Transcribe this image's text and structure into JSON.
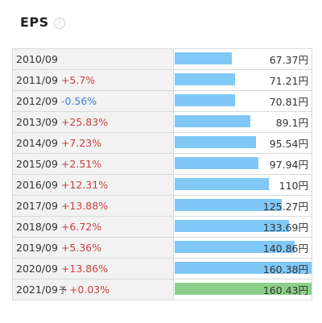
{
  "header": {
    "title": "EPS",
    "help_icon_glyph": "?"
  },
  "colors": {
    "bar_actual": "#80c8f8",
    "bar_forecast": "#8bd08a",
    "change_up": "#c94040",
    "change_down": "#3f7fd6"
  },
  "eps_table": {
    "max_value": 160.43,
    "rows": [
      {
        "period": "2010/09",
        "forecast_mark": "",
        "change": "",
        "direction": "",
        "value_label": "67.37円",
        "value": 67.37,
        "is_forecast": false
      },
      {
        "period": "2011/09",
        "forecast_mark": "",
        "change": "+5.7%",
        "direction": "up",
        "value_label": "71.21円",
        "value": 71.21,
        "is_forecast": false
      },
      {
        "period": "2012/09",
        "forecast_mark": "",
        "change": "-0.56%",
        "direction": "down",
        "value_label": "70.81円",
        "value": 70.81,
        "is_forecast": false
      },
      {
        "period": "2013/09",
        "forecast_mark": "",
        "change": "+25.83%",
        "direction": "up",
        "value_label": "89.1円",
        "value": 89.1,
        "is_forecast": false
      },
      {
        "period": "2014/09",
        "forecast_mark": "",
        "change": "+7.23%",
        "direction": "up",
        "value_label": "95.54円",
        "value": 95.54,
        "is_forecast": false
      },
      {
        "period": "2015/09",
        "forecast_mark": "",
        "change": "+2.51%",
        "direction": "up",
        "value_label": "97.94円",
        "value": 97.94,
        "is_forecast": false
      },
      {
        "period": "2016/09",
        "forecast_mark": "",
        "change": "+12.31%",
        "direction": "up",
        "value_label": "110円",
        "value": 110,
        "is_forecast": false
      },
      {
        "period": "2017/09",
        "forecast_mark": "",
        "change": "+13.88%",
        "direction": "up",
        "value_label": "125.27円",
        "value": 125.27,
        "is_forecast": false
      },
      {
        "period": "2018/09",
        "forecast_mark": "",
        "change": "+6.72%",
        "direction": "up",
        "value_label": "133.69円",
        "value": 133.69,
        "is_forecast": false
      },
      {
        "period": "2019/09",
        "forecast_mark": "",
        "change": "+5.36%",
        "direction": "up",
        "value_label": "140.86円",
        "value": 140.86,
        "is_forecast": false
      },
      {
        "period": "2020/09",
        "forecast_mark": "",
        "change": "+13.86%",
        "direction": "up",
        "value_label": "160.38円",
        "value": 160.38,
        "is_forecast": false
      },
      {
        "period": "2021/09",
        "forecast_mark": "予",
        "change": "+0.03%",
        "direction": "up",
        "value_label": "160.43円",
        "value": 160.43,
        "is_forecast": true
      }
    ]
  }
}
